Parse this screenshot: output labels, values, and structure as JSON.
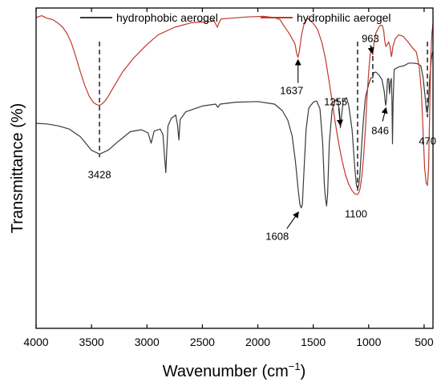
{
  "chart_data": {
    "type": "line",
    "xlabel_main": "Wavenumber (cm",
    "xlabel_sup": "−1",
    "xlabel_end": ")",
    "ylabel": "Transmittance (%)",
    "xlim": [
      4000,
      420
    ],
    "x_reversed": true,
    "y_ticks_shown": false,
    "x_ticks": [
      4000,
      3500,
      3000,
      2500,
      2000,
      1500,
      1000,
      500
    ],
    "x_tick_labels": [
      "4000",
      "3500",
      "3000",
      "2500",
      "2000",
      "1500",
      "1000",
      "500"
    ],
    "legend_position": "top",
    "series": [
      {
        "name": "hydrophobic aerogel",
        "color": "#3a3a3a",
        "points": [
          [
            4000,
            64.0
          ],
          [
            3900,
            63.8
          ],
          [
            3800,
            63.2
          ],
          [
            3700,
            62.2
          ],
          [
            3600,
            59.8
          ],
          [
            3500,
            55.6
          ],
          [
            3428,
            54.4
          ],
          [
            3350,
            55.6
          ],
          [
            3250,
            58.6
          ],
          [
            3150,
            61.4
          ],
          [
            3050,
            62.0
          ],
          [
            2990,
            61.0
          ],
          [
            2962,
            57.8
          ],
          [
            2935,
            61.6
          ],
          [
            2880,
            62.2
          ],
          [
            2855,
            60.4
          ],
          [
            2840,
            53.0
          ],
          [
            2830,
            48.6
          ],
          [
            2822,
            55.0
          ],
          [
            2810,
            63.2
          ],
          [
            2780,
            65.6
          ],
          [
            2740,
            66.6
          ],
          [
            2725,
            63.6
          ],
          [
            2712,
            58.8
          ],
          [
            2700,
            65.2
          ],
          [
            2650,
            67.6
          ],
          [
            2500,
            69.4
          ],
          [
            2380,
            70.0
          ],
          [
            2360,
            69.0
          ],
          [
            2340,
            70.0
          ],
          [
            2200,
            70.6
          ],
          [
            2000,
            70.8
          ],
          [
            1850,
            70.0
          ],
          [
            1780,
            68.0
          ],
          [
            1730,
            65.0
          ],
          [
            1690,
            60.0
          ],
          [
            1660,
            52.0
          ],
          [
            1635,
            43.0
          ],
          [
            1620,
            38.6
          ],
          [
            1608,
            37.6
          ],
          [
            1598,
            38.6
          ],
          [
            1585,
            48.0
          ],
          [
            1565,
            62.0
          ],
          [
            1540,
            68.8
          ],
          [
            1500,
            70.6
          ],
          [
            1470,
            71.0
          ],
          [
            1440,
            68.6
          ],
          [
            1415,
            58.0
          ],
          [
            1400,
            45.0
          ],
          [
            1390,
            40.6
          ],
          [
            1380,
            38.2
          ],
          [
            1370,
            42.0
          ],
          [
            1355,
            58.0
          ],
          [
            1330,
            68.2
          ],
          [
            1300,
            71.2
          ],
          [
            1280,
            71.4
          ],
          [
            1265,
            68.0
          ],
          [
            1255,
            62.6
          ],
          [
            1245,
            66.2
          ],
          [
            1230,
            70.8
          ],
          [
            1200,
            72.0
          ],
          [
            1180,
            69.6
          ],
          [
            1150,
            62.0
          ],
          [
            1125,
            50.0
          ],
          [
            1110,
            44.6
          ],
          [
            1100,
            43.6
          ],
          [
            1090,
            44.6
          ],
          [
            1080,
            47.6
          ],
          [
            1065,
            56.0
          ],
          [
            1050,
            64.0
          ],
          [
            1030,
            72.0
          ],
          [
            1000,
            76.2
          ],
          [
            980,
            78.2
          ],
          [
            963,
            78.2
          ],
          [
            955,
            79.8
          ],
          [
            935,
            80.0
          ],
          [
            905,
            79.0
          ],
          [
            880,
            77.6
          ],
          [
            860,
            74.0
          ],
          [
            852,
            71.0
          ],
          [
            846,
            69.6
          ],
          [
            840,
            71.0
          ],
          [
            830,
            77.8
          ],
          [
            820,
            78.0
          ],
          [
            812,
            73.2
          ],
          [
            805,
            76.8
          ],
          [
            795,
            78.0
          ],
          [
            790,
            72.0
          ],
          [
            785,
            57.6
          ],
          [
            780,
            70.0
          ],
          [
            770,
            80.8
          ],
          [
            730,
            81.6
          ],
          [
            680,
            82.0
          ],
          [
            640,
            82.8
          ],
          [
            600,
            82.8
          ],
          [
            560,
            82.6
          ],
          [
            530,
            82.0
          ],
          [
            510,
            78.4
          ],
          [
            490,
            72.0
          ],
          [
            478,
            67.6
          ],
          [
            470,
            67.4
          ],
          [
            462,
            70.0
          ],
          [
            450,
            78.0
          ],
          [
            435,
            84.0
          ],
          [
            425,
            86.0
          ],
          [
            420,
            86.6
          ]
        ]
      },
      {
        "name": "hydrophilic aerogel",
        "color": "#c0392b",
        "points": [
          [
            4000,
            97.0
          ],
          [
            3950,
            97.6
          ],
          [
            3900,
            96.8
          ],
          [
            3850,
            96.4
          ],
          [
            3800,
            95.2
          ],
          [
            3760,
            94.0
          ],
          [
            3720,
            92.0
          ],
          [
            3680,
            89.0
          ],
          [
            3640,
            84.6
          ],
          [
            3600,
            80.0
          ],
          [
            3560,
            75.8
          ],
          [
            3520,
            72.4
          ],
          [
            3480,
            70.4
          ],
          [
            3450,
            69.8
          ],
          [
            3428,
            69.6
          ],
          [
            3400,
            70.2
          ],
          [
            3360,
            71.8
          ],
          [
            3300,
            75.4
          ],
          [
            3220,
            80.0
          ],
          [
            3120,
            84.4
          ],
          [
            3000,
            88.6
          ],
          [
            2900,
            91.6
          ],
          [
            2750,
            94.0
          ],
          [
            2600,
            95.4
          ],
          [
            2420,
            95.8
          ],
          [
            2400,
            96.4
          ],
          [
            2380,
            95.0
          ],
          [
            2365,
            94.0
          ],
          [
            2350,
            95.4
          ],
          [
            2330,
            96.6
          ],
          [
            2250,
            96.8
          ],
          [
            2100,
            97.2
          ],
          [
            1950,
            97.4
          ],
          [
            1850,
            97.0
          ],
          [
            1800,
            96.4
          ],
          [
            1760,
            94.2
          ],
          [
            1720,
            92.2
          ],
          [
            1690,
            90.4
          ],
          [
            1665,
            88.8
          ],
          [
            1648,
            85.6
          ],
          [
            1637,
            84.6
          ],
          [
            1625,
            86.6
          ],
          [
            1605,
            91.8
          ],
          [
            1580,
            95.4
          ],
          [
            1550,
            96.8
          ],
          [
            1500,
            95.2
          ],
          [
            1460,
            93.2
          ],
          [
            1420,
            89.0
          ],
          [
            1390,
            84.2
          ],
          [
            1360,
            77.8
          ],
          [
            1330,
            71.0
          ],
          [
            1300,
            64.0
          ],
          [
            1270,
            57.6
          ],
          [
            1240,
            52.4
          ],
          [
            1210,
            48.0
          ],
          [
            1180,
            45.0
          ],
          [
            1150,
            43.0
          ],
          [
            1125,
            42.0
          ],
          [
            1110,
            41.8
          ],
          [
            1100,
            41.8
          ],
          [
            1088,
            42.4
          ],
          [
            1075,
            44.0
          ],
          [
            1060,
            48.0
          ],
          [
            1045,
            54.0
          ],
          [
            1030,
            62.0
          ],
          [
            1015,
            72.0
          ],
          [
            1000,
            80.0
          ],
          [
            985,
            86.0
          ],
          [
            975,
            88.0
          ],
          [
            968,
            86.6
          ],
          [
            963,
            85.4
          ],
          [
            958,
            87.0
          ],
          [
            950,
            89.6
          ],
          [
            935,
            92.2
          ],
          [
            915,
            93.6
          ],
          [
            895,
            94.6
          ],
          [
            878,
            94.6
          ],
          [
            865,
            93.0
          ],
          [
            855,
            89.6
          ],
          [
            845,
            88.0
          ],
          [
            835,
            88.4
          ],
          [
            820,
            89.4
          ],
          [
            808,
            88.0
          ],
          [
            800,
            86.0
          ],
          [
            795,
            84.8
          ],
          [
            790,
            85.6
          ],
          [
            780,
            88.2
          ],
          [
            760,
            90.4
          ],
          [
            730,
            91.6
          ],
          [
            690,
            91.2
          ],
          [
            650,
            89.6
          ],
          [
            610,
            87.8
          ],
          [
            570,
            86.2
          ],
          [
            545,
            82.0
          ],
          [
            525,
            74.0
          ],
          [
            510,
            62.0
          ],
          [
            495,
            50.0
          ],
          [
            482,
            45.6
          ],
          [
            470,
            44.6
          ],
          [
            460,
            50.0
          ],
          [
            450,
            68.0
          ],
          [
            440,
            84.0
          ],
          [
            430,
            92.0
          ],
          [
            420,
            95.0
          ]
        ]
      }
    ],
    "reference_lines": [
      3428,
      1100,
      963,
      470
    ],
    "annotations": [
      {
        "label": "3428",
        "wavenumber": 3428
      },
      {
        "label": "1637",
        "wavenumber": 1637
      },
      {
        "label": "963",
        "wavenumber": 963
      },
      {
        "label": "1255",
        "wavenumber": 1255
      },
      {
        "label": "1608",
        "wavenumber": 1608
      },
      {
        "label": "1100",
        "wavenumber": 1100
      },
      {
        "label": "846",
        "wavenumber": 846
      },
      {
        "label": "470",
        "wavenumber": 470
      }
    ]
  }
}
